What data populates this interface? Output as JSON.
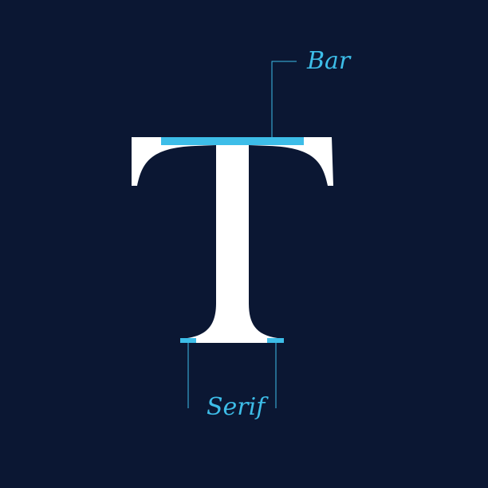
{
  "diagram": {
    "annotations": [
      {
        "id": "bar",
        "label": "Bar"
      },
      {
        "id": "serif",
        "label": "Serif"
      }
    ]
  },
  "colors": {
    "background": "#0b1733",
    "letter": "#ffffff",
    "accent": "#3dbde8"
  }
}
